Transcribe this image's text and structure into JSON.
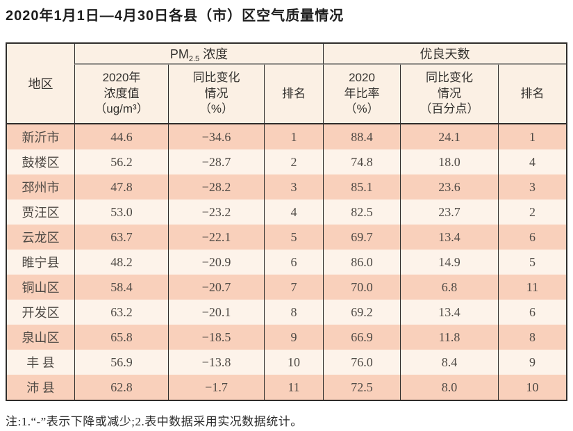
{
  "title": "2020年1月1日—4月30日各县（市）区空气质量情况",
  "note": "注:1.“-”表示下降或减少;2.表中数据采用实况数据统计。",
  "colors": {
    "row_salmon": "#f9d0bb",
    "row_cream": "#fdf3ea",
    "header_bg": "#fbf0e4",
    "border_dark": "#2f2d2b",
    "group_separator_gray": "#908d88"
  },
  "table": {
    "region_label": "地区",
    "group_pm": {
      "prefix": "PM",
      "sub": "2.5",
      "suffix": "浓度"
    },
    "group_good": "优良天数",
    "subheaders": [
      "2020年\n浓度值\n（ug/m³）",
      "同比变化\n情况\n（%）",
      "排名",
      "2020\n年比率\n（%）",
      "同比变化\n情况\n（百分点）",
      "排名"
    ],
    "rows": [
      {
        "region": "新沂市",
        "pm_value": "44.6",
        "pm_change": "−34.6",
        "pm_rank": "1",
        "good_ratio": "88.4",
        "good_change": "24.1",
        "good_rank": "1"
      },
      {
        "region": "鼓楼区",
        "pm_value": "56.2",
        "pm_change": "−28.7",
        "pm_rank": "2",
        "good_ratio": "74.8",
        "good_change": "18.0",
        "good_rank": "4"
      },
      {
        "region": "邳州市",
        "pm_value": "47.8",
        "pm_change": "−28.2",
        "pm_rank": "3",
        "good_ratio": "85.1",
        "good_change": "23.6",
        "good_rank": "3"
      },
      {
        "region": "贾汪区",
        "pm_value": "53.0",
        "pm_change": "−23.2",
        "pm_rank": "4",
        "good_ratio": "82.5",
        "good_change": "23.7",
        "good_rank": "2"
      },
      {
        "region": "云龙区",
        "pm_value": "63.7",
        "pm_change": "−22.1",
        "pm_rank": "5",
        "good_ratio": "69.7",
        "good_change": "13.4",
        "good_rank": "6"
      },
      {
        "region": "睢宁县",
        "pm_value": "48.2",
        "pm_change": "−20.9",
        "pm_rank": "6",
        "good_ratio": "86.0",
        "good_change": "14.9",
        "good_rank": "5"
      },
      {
        "region": "铜山区",
        "pm_value": "58.4",
        "pm_change": "−20.7",
        "pm_rank": "7",
        "good_ratio": "70.0",
        "good_change": "6.8",
        "good_rank": "11"
      },
      {
        "region": "开发区",
        "pm_value": "63.2",
        "pm_change": "−20.1",
        "pm_rank": "8",
        "good_ratio": "69.2",
        "good_change": "13.4",
        "good_rank": "6"
      },
      {
        "region": "泉山区",
        "pm_value": "65.8",
        "pm_change": "−18.5",
        "pm_rank": "9",
        "good_ratio": "66.9",
        "good_change": "11.8",
        "good_rank": "8"
      },
      {
        "region": "丰 县",
        "pm_value": "56.9",
        "pm_change": "−13.8",
        "pm_rank": "10",
        "good_ratio": "76.0",
        "good_change": "8.4",
        "good_rank": "9"
      },
      {
        "region": "沛 县",
        "pm_value": "62.8",
        "pm_change": "−1.7",
        "pm_rank": "11",
        "good_ratio": "72.5",
        "good_change": "8.0",
        "good_rank": "10"
      }
    ]
  }
}
